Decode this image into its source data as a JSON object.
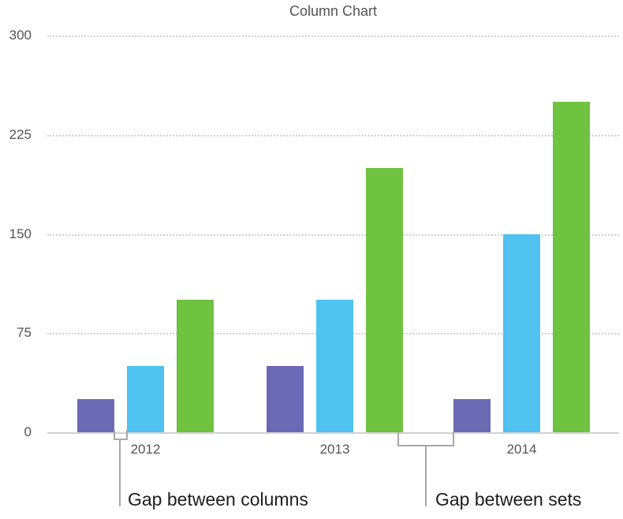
{
  "chart_data": {
    "type": "bar",
    "title": "Column Chart",
    "categories": [
      "2012",
      "2013",
      "2014"
    ],
    "series": [
      {
        "name": "purple",
        "color": "#6b69b4",
        "values": [
          25,
          50,
          25
        ]
      },
      {
        "name": "blue",
        "color": "#4fc2f0",
        "values": [
          50,
          100,
          150
        ]
      },
      {
        "name": "green",
        "color": "#70c241",
        "values": [
          100,
          200,
          250
        ]
      }
    ],
    "xlabel": "",
    "ylabel": "",
    "ylim": [
      0,
      300
    ],
    "yticks": [
      0,
      75,
      150,
      225,
      300
    ],
    "grid": "horizontal dotted",
    "legend": "none",
    "annotations": [
      {
        "text": "Gap between columns",
        "target": "gap between adjacent bars inside the 2012 set"
      },
      {
        "text": "Gap between sets",
        "target": "gap between the 2013 set and the 2014 set"
      }
    ]
  },
  "colors": {
    "background": "#ffffff",
    "axis_text": "#545456",
    "title_text": "#545456",
    "grid": "#d2d2d2",
    "callout": "#a8a8a8",
    "annotation_text": "#1d1d1f"
  }
}
